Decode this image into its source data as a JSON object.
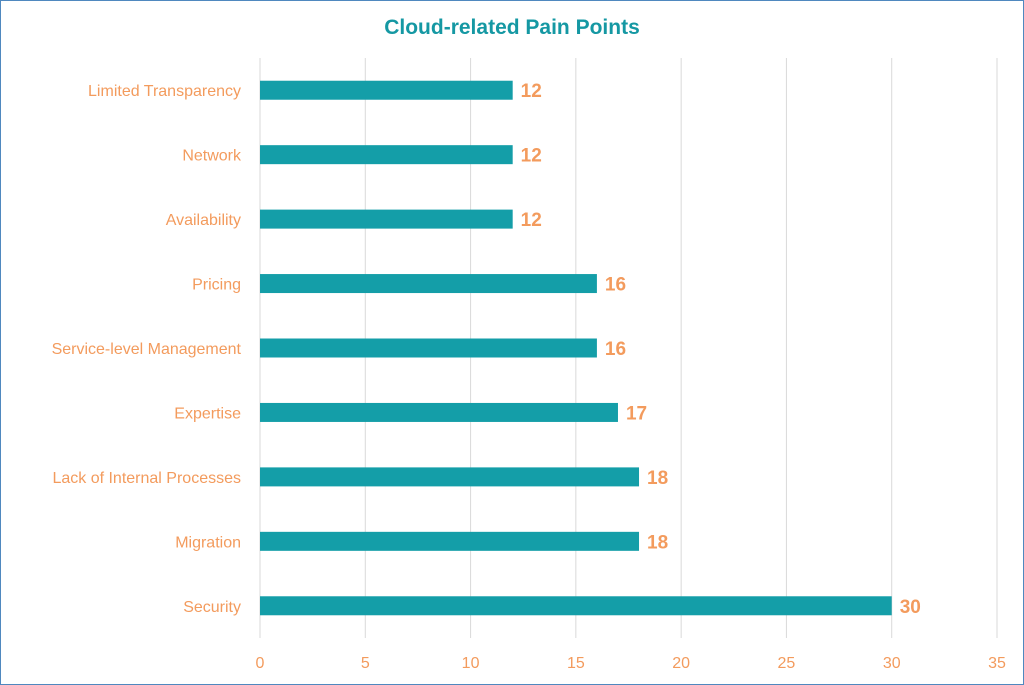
{
  "colors": {
    "title": "#1598a3",
    "bar": "#149ea8",
    "label": "#f39b5d",
    "grid": "#d9d9d9",
    "frame": "#4f88bf"
  },
  "chart_data": {
    "type": "bar",
    "orientation": "horizontal",
    "title": "Cloud-related Pain Points",
    "xlabel": "",
    "ylabel": "",
    "categories": [
      "Limited Transparency",
      "Network",
      "Availability",
      "Pricing",
      "Service-level Management",
      "Expertise",
      "Lack of Internal Processes",
      "Migration",
      "Security"
    ],
    "values": [
      12,
      12,
      12,
      16,
      16,
      17,
      18,
      18,
      30
    ],
    "xlim": [
      0,
      35
    ],
    "xticks": [
      0,
      5,
      10,
      15,
      20,
      25,
      30,
      35
    ],
    "grid": true,
    "legend": "none"
  }
}
